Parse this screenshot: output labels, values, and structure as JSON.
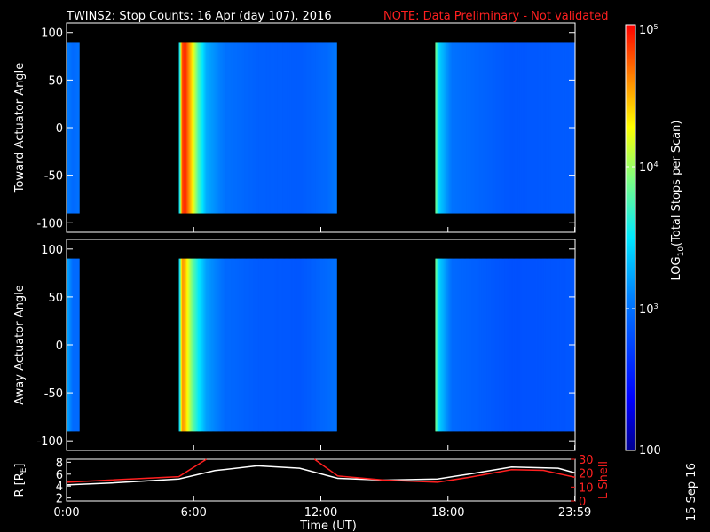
{
  "header": {
    "title": "TWINS2: Stop Counts: 16 Apr (day 107), 2016",
    "note": "NOTE: Data Preliminary - Not validated"
  },
  "colorbar": {
    "label_prefix": "LOG",
    "label_sub": "10",
    "label_suffix": "(Total Stops per Scan)",
    "range": [
      100,
      100000
    ],
    "scale": "log",
    "ticks": [
      {
        "value": 100000,
        "base": "10",
        "exp": "5"
      },
      {
        "value": 10000,
        "base": "10",
        "exp": "4"
      },
      {
        "value": 1000,
        "base": "10",
        "exp": "3"
      },
      {
        "value": 100,
        "base": "100",
        "exp": ""
      }
    ]
  },
  "x_axis": {
    "label": "Time (UT)",
    "range_hours": [
      0,
      24
    ],
    "ticks": [
      {
        "hour": 0,
        "label": "0:00"
      },
      {
        "hour": 6,
        "label": "6:00"
      },
      {
        "hour": 12,
        "label": "12:00"
      },
      {
        "hour": 18,
        "label": "18:00"
      },
      {
        "hour": 23.983,
        "label": "23:59"
      }
    ]
  },
  "footer": {
    "date_stamp": "15 Sep 16"
  },
  "chart_data": [
    {
      "type": "heatmap",
      "panel": "toward",
      "ylabel": "Toward Actuator Angle",
      "ylim": [
        -110,
        110
      ],
      "yticks": [
        100,
        50,
        0,
        -50,
        -100
      ],
      "angle_range": [
        -90,
        90
      ],
      "data_intervals_hours": [
        [
          0.0,
          0.6
        ],
        [
          5.3,
          12.75
        ],
        [
          17.4,
          24.0
        ]
      ],
      "profile": [
        {
          "t": 0.0,
          "v": 1200
        },
        {
          "t": 0.3,
          "v": 900
        },
        {
          "t": 0.6,
          "v": 1000
        },
        {
          "t": 5.3,
          "v": 1500
        },
        {
          "t": 5.45,
          "v": 60000
        },
        {
          "t": 5.6,
          "v": 80000
        },
        {
          "t": 5.9,
          "v": 25000
        },
        {
          "t": 6.2,
          "v": 6000
        },
        {
          "t": 6.6,
          "v": 1800
        },
        {
          "t": 7.5,
          "v": 1000
        },
        {
          "t": 9.0,
          "v": 800
        },
        {
          "t": 11.0,
          "v": 750
        },
        {
          "t": 12.3,
          "v": 900
        },
        {
          "t": 12.75,
          "v": 1100
        },
        {
          "t": 17.4,
          "v": 8000
        },
        {
          "t": 17.6,
          "v": 2500
        },
        {
          "t": 18.2,
          "v": 1000
        },
        {
          "t": 21.0,
          "v": 700
        },
        {
          "t": 24.0,
          "v": 750
        }
      ]
    },
    {
      "type": "heatmap",
      "panel": "away",
      "ylabel": "Away Actuator Angle",
      "ylim": [
        -110,
        110
      ],
      "yticks": [
        100,
        50,
        0,
        -50,
        -100
      ],
      "angle_range": [
        -90,
        90
      ],
      "data_intervals_hours": [
        [
          0.0,
          0.6
        ],
        [
          5.3,
          12.75
        ],
        [
          17.4,
          24.0
        ]
      ],
      "profile": [
        {
          "t": 0.0,
          "v": 2000
        },
        {
          "t": 0.3,
          "v": 900
        },
        {
          "t": 0.6,
          "v": 900
        },
        {
          "t": 5.3,
          "v": 1500
        },
        {
          "t": 5.45,
          "v": 40000
        },
        {
          "t": 5.6,
          "v": 30000
        },
        {
          "t": 5.9,
          "v": 8000
        },
        {
          "t": 6.2,
          "v": 3500
        },
        {
          "t": 6.6,
          "v": 1600
        },
        {
          "t": 7.5,
          "v": 900
        },
        {
          "t": 9.0,
          "v": 750
        },
        {
          "t": 11.0,
          "v": 700
        },
        {
          "t": 12.3,
          "v": 900
        },
        {
          "t": 12.75,
          "v": 1000
        },
        {
          "t": 17.4,
          "v": 8000
        },
        {
          "t": 17.6,
          "v": 2500
        },
        {
          "t": 18.2,
          "v": 900
        },
        {
          "t": 21.0,
          "v": 650
        },
        {
          "t": 24.0,
          "v": 700
        }
      ]
    },
    {
      "type": "line",
      "panel": "orbit",
      "ylabel_left": "R [R",
      "ylabel_left_sub": "E",
      "ylabel_left_close": "]",
      "ylabel_right": "L Shell",
      "yticks_left": [
        2,
        4,
        6,
        8
      ],
      "ylim_left": [
        1.5,
        8.5
      ],
      "yticks_right": [
        0,
        10,
        20,
        30
      ],
      "ylim_right": [
        0,
        30
      ],
      "series": [
        {
          "axis": "left",
          "color": "#ffffff",
          "points": [
            [
              0,
              4.2
            ],
            [
              2,
              4.5
            ],
            [
              5.3,
              5.2
            ],
            [
              7,
              6.6
            ],
            [
              9,
              7.4
            ],
            [
              11,
              7.0
            ],
            [
              12.8,
              5.3
            ],
            [
              15,
              5.0
            ],
            [
              17.5,
              5.2
            ],
            [
              19,
              6.0
            ],
            [
              21,
              7.2
            ],
            [
              23.2,
              7.0
            ],
            [
              24,
              6.2
            ]
          ]
        },
        {
          "axis": "right",
          "color": "#ff2020",
          "points": [
            [
              0,
              13.5
            ],
            [
              5.3,
              17.5
            ],
            [
              6.6,
              31
            ],
            null,
            [
              11.7,
              31
            ],
            [
              12.8,
              18.0
            ],
            [
              15,
              15.0
            ],
            [
              17.5,
              13.5
            ],
            [
              19,
              17.0
            ],
            [
              21,
              22.5
            ],
            [
              22.5,
              22.0
            ],
            [
              24,
              17.0
            ]
          ]
        }
      ]
    }
  ]
}
